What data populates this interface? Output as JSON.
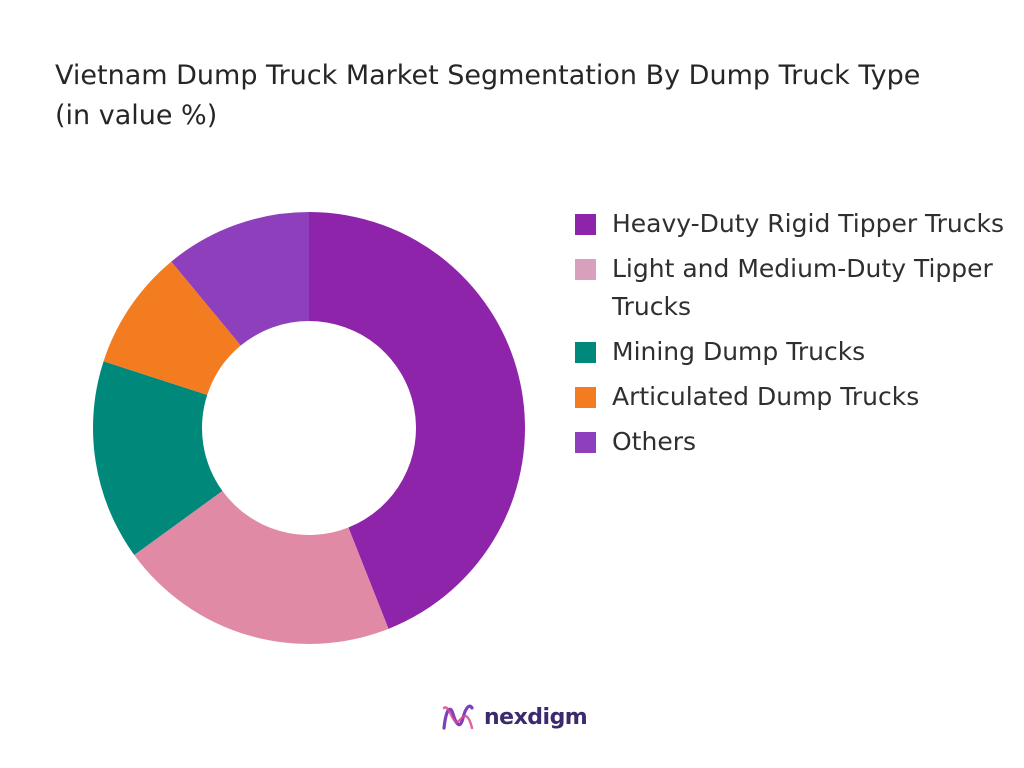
{
  "chart_data": {
    "type": "pie",
    "title": "Vietnam Dump Truck Market Segmentation By Dump Truck Type (in value %)",
    "legend_position": "right",
    "hole": true,
    "categories": [
      "Heavy-Duty Rigid Tipper Trucks",
      "Light and Medium-Duty Tipper Trucks",
      "Mining Dump Trucks",
      "Articulated Dump Trucks",
      "Others"
    ],
    "values": [
      44,
      21,
      15,
      9,
      11
    ],
    "colors": [
      "#8e24aa",
      "#e08aa6",
      "#00897b",
      "#f47c20",
      "#8e3fbc"
    ],
    "legend_colors": [
      "#8e24aa",
      "#d9a0bd",
      "#00897b",
      "#f47c20",
      "#8e3fbc"
    ]
  },
  "brand": {
    "name": "nexdigm"
  }
}
